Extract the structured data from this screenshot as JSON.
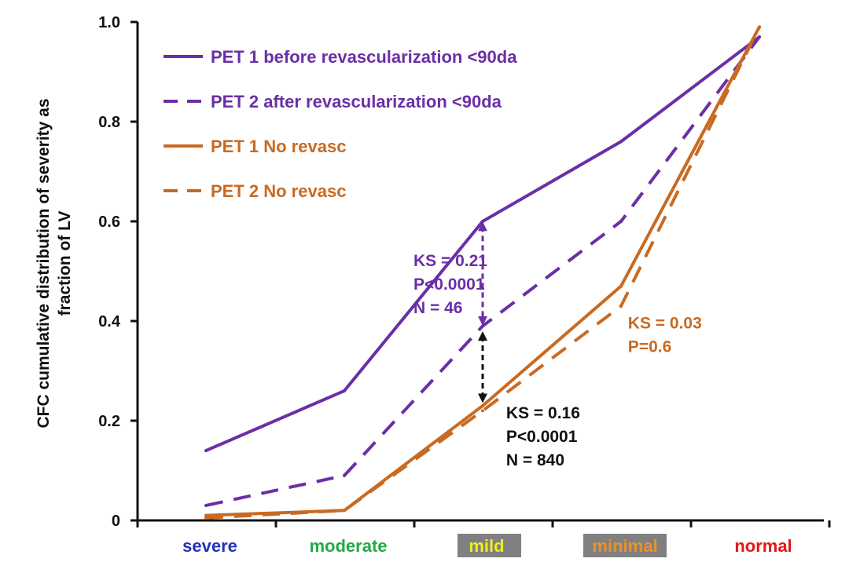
{
  "chart_data": {
    "type": "line",
    "title": "",
    "xlabel": "",
    "ylabel_lines": [
      "CFC cumulative distribution of severity as",
      "fraction of LV"
    ],
    "categories": [
      "severe",
      "moderate",
      "mild",
      "minimal",
      "normal"
    ],
    "category_colors": [
      "#2233bb",
      "#22aa44",
      "#eeee22",
      "#e8922e",
      "#e01818"
    ],
    "category_highlight": [
      false,
      false,
      true,
      true,
      false
    ],
    "highlight_color": "#808080",
    "ylim": [
      0,
      1.0
    ],
    "yticks": [
      0,
      0.2,
      0.4,
      0.6,
      0.8,
      1.0
    ],
    "ytick_labels": [
      "0",
      "0.2",
      "0.4",
      "0.6",
      "0.8",
      "1.0"
    ],
    "grid": false,
    "legend_position": "top-left",
    "series": [
      {
        "name": "PET 1 before revascularization <90da",
        "color": "#6a2fa6",
        "dash": "solid",
        "values": [
          0.14,
          0.26,
          0.6,
          0.76,
          0.97
        ]
      },
      {
        "name": "PET 2 after revascularization <90da",
        "color": "#6a2fa6",
        "dash": "dashed",
        "values": [
          0.03,
          0.09,
          0.39,
          0.6,
          0.97
        ]
      },
      {
        "name": "PET 1 No revasc",
        "color": "#c86a22",
        "dash": "solid",
        "values": [
          0.01,
          0.02,
          0.23,
          0.47,
          0.99
        ]
      },
      {
        "name": "PET 2 No revasc",
        "color": "#c86a22",
        "dash": "dashed",
        "values": [
          0.005,
          0.02,
          0.22,
          0.43,
          0.99
        ]
      }
    ],
    "annotations": [
      {
        "lines": [
          "KS = 0.21",
          "P<0.0001",
          "N = 46"
        ],
        "color": "#6a2fa6",
        "anchor_x": 1.5,
        "anchor_y": 0.51
      },
      {
        "lines": [
          "KS = 0.03",
          "P=0.6"
        ],
        "color": "#c86a22",
        "anchor_x": 3.05,
        "anchor_y": 0.385
      },
      {
        "lines": [
          "KS = 0.16",
          "P<0.0001",
          "N = 840"
        ],
        "color": "#111111",
        "anchor_x": 2.17,
        "anchor_y": 0.205
      }
    ],
    "arrows": [
      {
        "x": 2,
        "y_from": 0.4,
        "y_to": 0.59,
        "color": "#6a2fa6"
      },
      {
        "x": 2,
        "y_from": 0.245,
        "y_to": 0.37,
        "color": "#111111"
      }
    ]
  }
}
